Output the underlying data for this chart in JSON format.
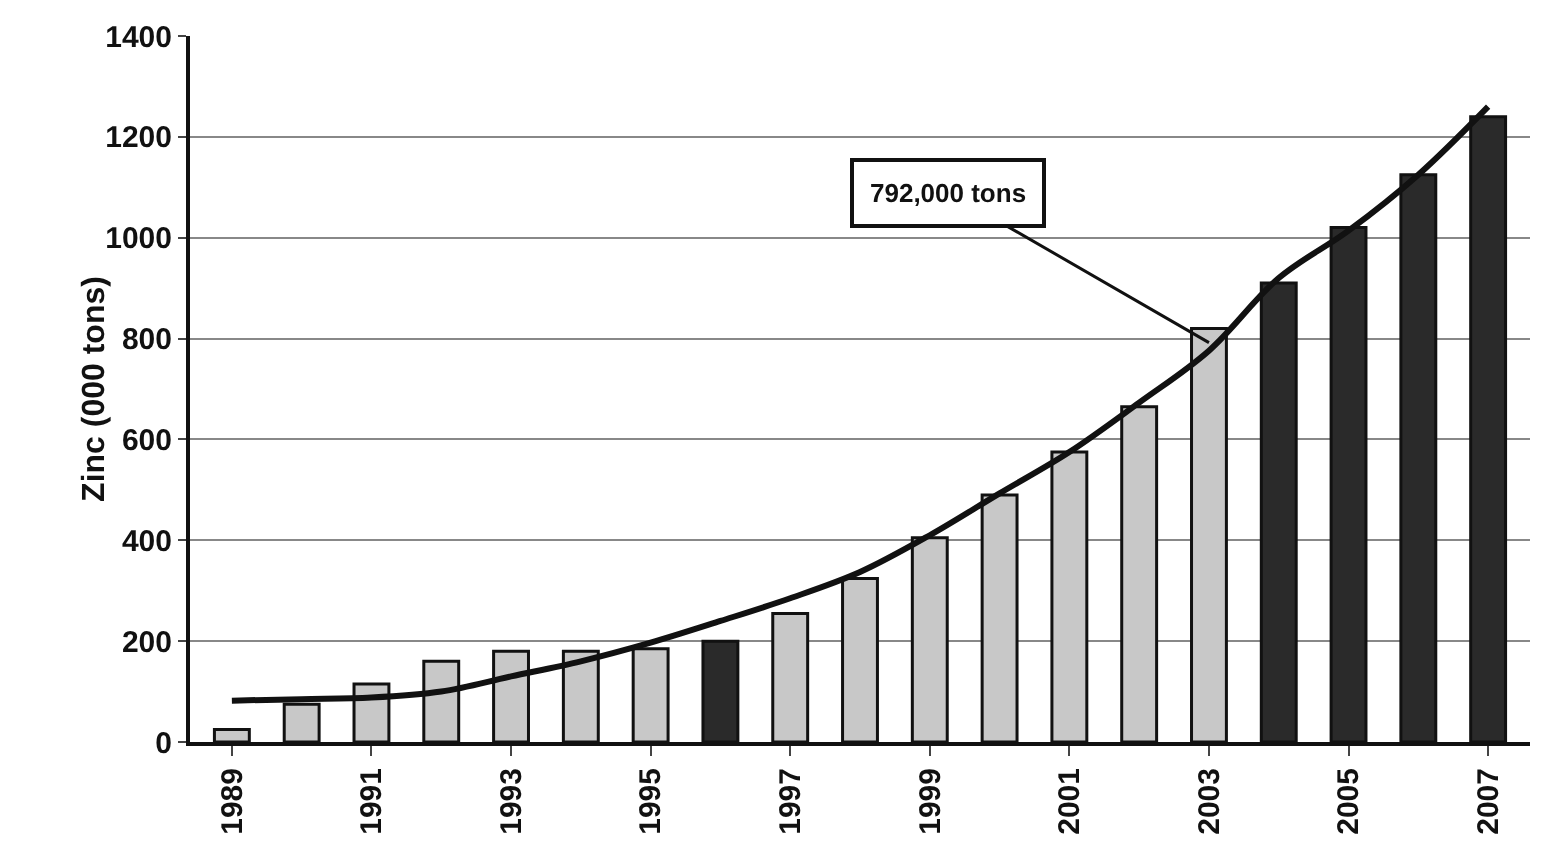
{
  "chart_data": {
    "type": "bar",
    "ylabel": "Zinc (000 tons)",
    "categories": [
      "1989",
      null,
      "1991",
      null,
      "1993",
      null,
      "1995",
      null,
      "1997",
      null,
      "1999",
      null,
      "2001",
      null,
      "2003",
      null,
      "2005",
      null,
      "2007"
    ],
    "series": [
      {
        "values": [
          25,
          75,
          115,
          160,
          180,
          180,
          185,
          200,
          255,
          324,
          405,
          490,
          575,
          665,
          820,
          910,
          1020,
          1125,
          1240
        ],
        "colors": [
          "#c8c8c8",
          "#c8c8c8",
          "#c8c8c8",
          "#c8c8c8",
          "#c8c8c8",
          "#c8c8c8",
          "#c8c8c8",
          "#2a2a2a",
          "#c8c8c8",
          "#c8c8c8",
          "#c8c8c8",
          "#c8c8c8",
          "#c8c8c8",
          "#c8c8c8",
          "#c8c8c8",
          "#2a2a2a",
          "#2a2a2a",
          "#2a2a2a",
          "#2a2a2a"
        ]
      },
      {
        "type": "line",
        "color": "#111111",
        "values": [
          82,
          85,
          88,
          100,
          130,
          160,
          197,
          240,
          285,
          337,
          410,
          493,
          575,
          673,
          776,
          920,
          1014,
          1125,
          1260
        ]
      }
    ],
    "ylim": [
      0,
      1400
    ],
    "yticks": [
      0,
      200,
      400,
      600,
      800,
      1000,
      1200,
      1400
    ],
    "grid": "y",
    "legend": false,
    "marker": "none",
    "line_style": "solid",
    "annotations": [
      {
        "text": "792,000 tons",
        "x": "2003",
        "y": 792
      }
    ]
  }
}
